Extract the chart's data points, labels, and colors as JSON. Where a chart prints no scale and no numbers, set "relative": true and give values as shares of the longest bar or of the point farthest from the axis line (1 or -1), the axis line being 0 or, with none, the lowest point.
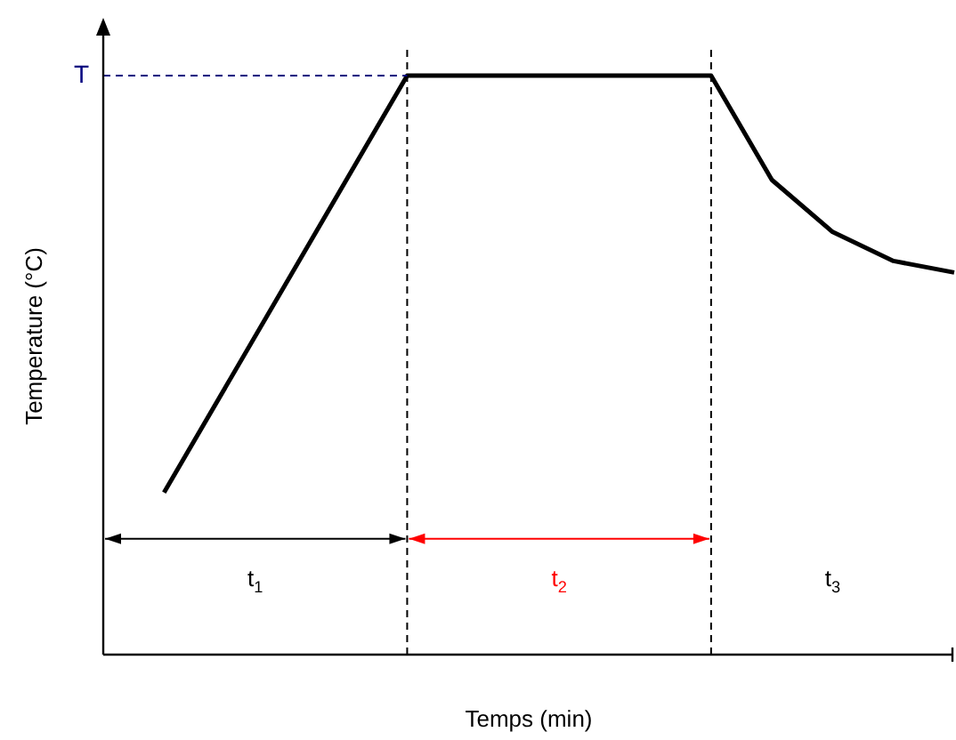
{
  "chart_data": {
    "type": "line",
    "relative": true,
    "xlabel": "Temps (min)",
    "ylabel": "Temperature (°C)",
    "categories": [
      null,
      null,
      null,
      null,
      null,
      null,
      null,
      null,
      null,
      null,
      null,
      null,
      null,
      null,
      null
    ],
    "tick_labels": false,
    "series": [
      {
        "color": "#000000",
        "values": [
          null,
          0.28,
          null,
          null,
          null,
          1,
          null,
          null,
          null,
          null,
          1,
          0.82,
          0.73,
          0.68,
          0.66
        ]
      }
    ],
    "ref_lines": [
      {
        "axis": "y",
        "value": 1,
        "label": "T",
        "color": "#000080",
        "line_style": "dashed"
      }
    ],
    "annotations": [
      "t$_{1}$",
      "t$_{2}$",
      "t$_{3}$"
    ],
    "marker": "none",
    "line_style": "solid"
  }
}
